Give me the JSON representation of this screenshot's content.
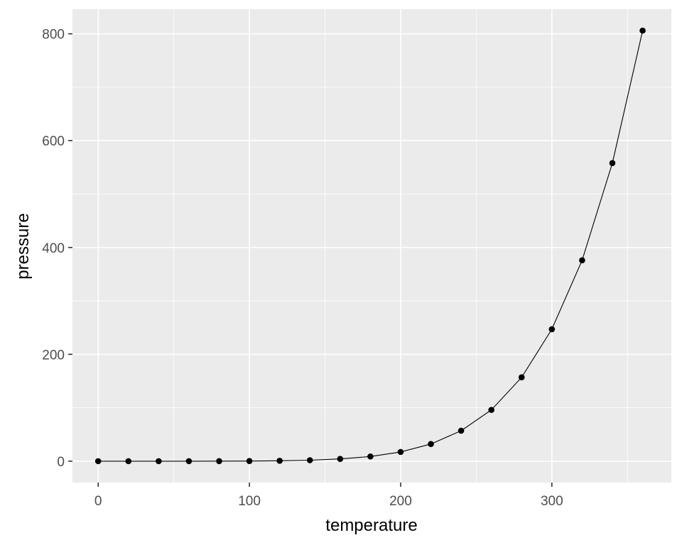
{
  "chart_data": {
    "type": "line",
    "title": "",
    "xlabel": "temperature",
    "ylabel": "pressure",
    "x": [
      0,
      20,
      40,
      60,
      80,
      100,
      120,
      140,
      160,
      180,
      200,
      220,
      240,
      260,
      280,
      300,
      320,
      340,
      360
    ],
    "series": [
      {
        "name": "pressure",
        "values": [
          0.0002,
          0.0012,
          0.006,
          0.03,
          0.09,
          0.27,
          0.75,
          1.85,
          4.2,
          8.8,
          17.3,
          32.1,
          57.0,
          96.0,
          157.0,
          247.0,
          376.0,
          558.0,
          806.0
        ]
      }
    ],
    "xlim": [
      -17,
      379
    ],
    "ylim": [
      -40,
      846
    ],
    "x_ticks": [
      0,
      100,
      200,
      300
    ],
    "y_ticks": [
      0,
      200,
      400,
      600,
      800
    ],
    "x_tick_labels": [
      "0",
      "100",
      "200",
      "300"
    ],
    "y_tick_labels": [
      "0",
      "200",
      "400",
      "600",
      "800"
    ],
    "grid": true,
    "legend": "none",
    "markers": "points",
    "panel_background": "#ebebeb",
    "grid_color": "#ffffff",
    "line_color": "#000000"
  }
}
